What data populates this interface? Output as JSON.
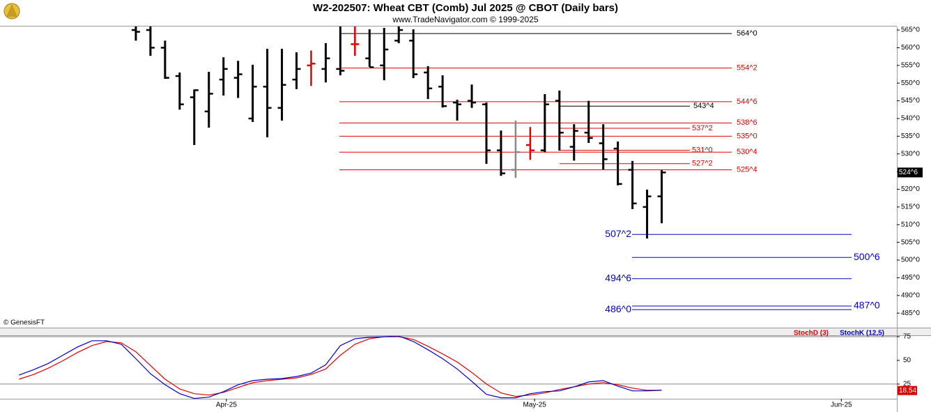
{
  "chart_data": [
    {
      "type": "ohlc",
      "title": "W2-202507:  Wheat CBT (Comb) Jul 2025 @ CBOT  (Daily bars)",
      "subtitle": "www.TradeNavigator.com © 1999-2025",
      "watermark": "© GenesisFT",
      "categories": [
        null,
        null,
        null,
        null,
        null,
        null,
        null,
        null,
        null,
        null,
        null,
        null,
        null,
        null,
        null,
        null,
        null,
        null,
        null,
        null,
        null,
        null,
        null,
        null,
        null,
        null,
        null,
        null,
        null,
        null,
        null,
        null,
        null,
        null,
        null,
        null,
        null
      ],
      "open": [
        565,
        565,
        560,
        552,
        546,
        542,
        551,
        551.5,
        540,
        549,
        543,
        551,
        555,
        554,
        554,
        561,
        557,
        555,
        562,
        562,
        553,
        549,
        544.5,
        545,
        544,
        531,
        525.5,
        532.5,
        531,
        545,
        532,
        536,
        533,
        531.5,
        525.5,
        515,
        518
      ],
      "high": [
        566,
        566,
        562,
        553,
        548.2,
        553.2,
        557.3,
        556.3,
        555.2,
        559.7,
        559.7,
        558.7,
        559.2,
        561.3,
        566.5,
        566,
        565.2,
        565.6,
        567,
        565.2,
        554.8,
        552.2,
        545.3,
        549.6,
        544.5,
        536.6,
        539.4,
        537.6,
        546.9,
        547.9,
        538.4,
        545,
        538.4,
        533.5,
        528,
        519.9,
        525.4
      ],
      "low": [
        562,
        557.7,
        551.2,
        542.5,
        532.5,
        537.4,
        546.5,
        545.8,
        539,
        534.7,
        539.4,
        548.3,
        549.2,
        550.2,
        552.2,
        557.7,
        554.6,
        550.8,
        561.3,
        551.4,
        545.5,
        543.1,
        539.4,
        543,
        527.2,
        523.8,
        523.2,
        528.3,
        530.5,
        530.9,
        528.1,
        533.1,
        525.6,
        521.1,
        514.4,
        506.1,
        510.4
      ],
      "close": [
        564.5,
        560,
        551.5,
        544,
        548,
        547,
        554,
        552.5,
        549,
        543,
        549.5,
        554,
        555.5,
        557,
        553.5,
        561,
        554.5,
        559.5,
        565,
        552.5,
        548.5,
        543.5,
        544,
        544.5,
        531,
        524.5,
        530.5,
        531,
        544,
        536,
        536.5,
        534.5,
        528.5,
        521.5,
        516,
        518,
        524.75
      ],
      "bar_colors": [
        "#000",
        "#000",
        "#000",
        "#000",
        "#000",
        "#000",
        "#000",
        "#000",
        "#000",
        "#000",
        "#000",
        "#000",
        "#e00000",
        "#000",
        "#000",
        "#e00000",
        "#000",
        "#000",
        "#000",
        "#000",
        "#000",
        "#000",
        "#000",
        "#000",
        "#000",
        "#000",
        "#888888",
        "#e00000",
        "#000",
        "#000",
        "#000",
        "#000",
        "#000",
        "#000",
        "#000",
        "#000",
        "#000"
      ],
      "last_value_label": "524^6",
      "xlim": [
        -9.3,
        52.1
      ],
      "ylim": [
        480.9,
        566
      ],
      "yticks": [
        {
          "value": 565,
          "label": "565^0"
        },
        {
          "value": 560,
          "label": "560^0"
        },
        {
          "value": 555,
          "label": "555^0"
        },
        {
          "value": 550,
          "label": "550^0"
        },
        {
          "value": 545,
          "label": "545^0"
        },
        {
          "value": 540,
          "label": "540^0"
        },
        {
          "value": 535,
          "label": "535^0"
        },
        {
          "value": 530,
          "label": "530^0"
        },
        {
          "value": 525,
          "label": "525^0"
        },
        {
          "value": 520,
          "label": "520^0"
        },
        {
          "value": 515,
          "label": "515^0"
        },
        {
          "value": 510,
          "label": "510^0"
        },
        {
          "value": 505,
          "label": "505^0"
        },
        {
          "value": 500,
          "label": "500^0"
        },
        {
          "value": 495,
          "label": "495^0"
        },
        {
          "value": 490,
          "label": "490^0"
        },
        {
          "value": 485,
          "label": "485^0"
        }
      ],
      "levels": [
        {
          "label": "564^0",
          "value": 564,
          "color": "#000000"
        },
        {
          "label": "554^2",
          "value": 554.25,
          "color": "#e00000"
        },
        {
          "label": "544^6",
          "value": 544.75,
          "color": "#e00000"
        },
        {
          "label": "538^6",
          "value": 538.75,
          "color": "#e00000"
        },
        {
          "label": "535^0",
          "value": 535,
          "color": "#e00000"
        },
        {
          "label": "530^4",
          "value": 530.5,
          "color": "#e00000"
        },
        {
          "label": "525^4",
          "value": 525.5,
          "color": "#e00000"
        },
        {
          "label": "543^4",
          "value": 543.5,
          "color": "#000000"
        },
        {
          "label": "537^2",
          "value": 537.25,
          "color": "#e00000"
        },
        {
          "label": "531^0",
          "value": 531,
          "color": "#e00000"
        },
        {
          "label": "527^2",
          "value": 527.25,
          "color": "#e00000"
        },
        {
          "label": "507^2",
          "value": 507.25,
          "color": "#0000c8"
        },
        {
          "label": "500^6",
          "value": 500.75,
          "color": "#0000c8"
        },
        {
          "label": "494^6",
          "value": 494.75,
          "color": "#0000c8"
        },
        {
          "label": "487^0",
          "value": 487,
          "color": "#0000c8"
        },
        {
          "label": "486^0",
          "value": 486,
          "color": "#0000c8"
        }
      ]
    },
    {
      "type": "line",
      "categories": [
        null,
        null,
        null,
        null,
        null,
        null,
        null,
        null,
        null,
        null,
        null,
        null,
        null,
        null,
        null,
        null,
        null,
        null,
        null,
        null,
        null,
        null,
        null,
        null,
        null,
        null,
        null,
        null,
        null,
        null,
        null,
        null,
        null,
        null,
        null,
        null,
        null,
        null,
        null,
        null,
        null,
        null,
        null,
        null,
        null
      ],
      "series": [
        {
          "name": "StochD (3)",
          "color": "#e00000",
          "values": [
            30.1,
            35.1,
            41.7,
            49.6,
            58.3,
            65.6,
            69.9,
            68.5,
            59.1,
            44.6,
            30.1,
            19.9,
            14.9,
            13.4,
            16.3,
            21.4,
            26.4,
            28.6,
            30.1,
            31.5,
            35.1,
            40.9,
            55.4,
            67,
            72.8,
            75,
            75,
            72.1,
            64.8,
            56.9,
            48.2,
            37.3,
            25,
            15.6,
            12,
            13.4,
            15.6,
            19.3,
            22.1,
            25,
            26.4,
            24.3,
            20.7,
            18.5,
            18.54
          ]
        },
        {
          "name": "StochK (12,5)",
          "color": "#0000c8",
          "values": [
            34.4,
            40.2,
            46.7,
            55.4,
            64.1,
            70.7,
            70.7,
            67,
            51.8,
            35.9,
            24.3,
            14.9,
            9.8,
            11.2,
            17,
            24.3,
            28.6,
            30.1,
            30.8,
            33,
            36.6,
            45.3,
            65.6,
            72.8,
            74.3,
            75,
            75.7,
            69.9,
            61.2,
            51.8,
            40.9,
            27.9,
            14.1,
            10.5,
            10.5,
            14.9,
            17,
            17.8,
            22.1,
            27.2,
            28.6,
            22.8,
            17.8,
            17.8,
            18.5
          ]
        }
      ],
      "xlim": [
        -1.3,
        60.1
      ],
      "xticks": [
        {
          "value": 14.2,
          "label": "Apr-25"
        },
        {
          "value": 35.3,
          "label": "May-25"
        },
        {
          "value": 56.3,
          "label": "Jun-25"
        }
      ],
      "ylim": [
        9.5,
        75.7
      ],
      "yticks": [
        75,
        50,
        25
      ],
      "grid_levels": [
        75,
        25
      ]
    }
  ]
}
